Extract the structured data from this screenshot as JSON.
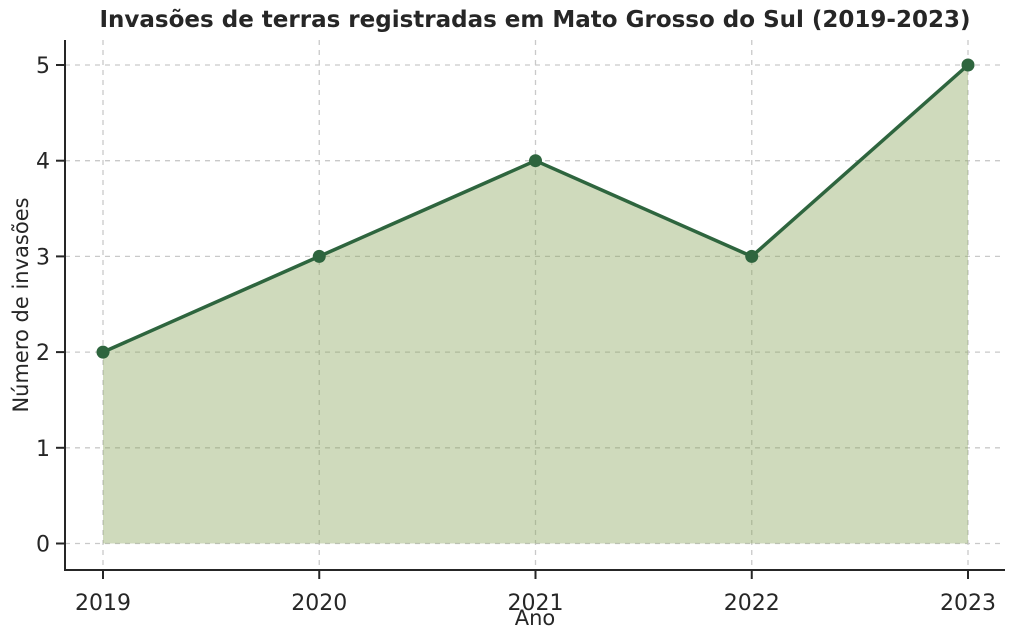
{
  "chart_data": {
    "type": "area",
    "title": "Invasões de terras registradas em Mato Grosso do Sul (2019-2023)",
    "xlabel": "Ano",
    "ylabel": "Número de invasões",
    "categories": [
      "2019",
      "2020",
      "2021",
      "2022",
      "2023"
    ],
    "values": [
      2,
      3,
      4,
      3,
      5
    ],
    "ylim": [
      0,
      5
    ],
    "yticks": [
      0,
      1,
      2,
      3,
      4,
      5
    ],
    "grid": true,
    "grid_style": "dashed",
    "legend": "none",
    "colors": {
      "line": "#2e653e",
      "marker": "#2e653e",
      "fill": "#8da65f",
      "fill_opacity": "0.42",
      "grid": "#c9c9c9",
      "spine": "#262626",
      "tick_text": "#262626",
      "title_text": "#262626"
    }
  }
}
